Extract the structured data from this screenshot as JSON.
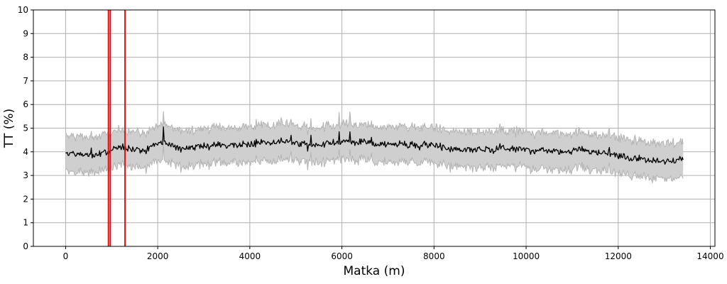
{
  "chart_data": {
    "type": "line",
    "title": "",
    "xlabel": "Matka (m)",
    "ylabel": "TT (%)",
    "xlim": [
      -700,
      14100
    ],
    "ylim": [
      0,
      10
    ],
    "xticks": [
      0,
      2000,
      4000,
      6000,
      8000,
      10000,
      12000,
      14000
    ],
    "yticks": [
      0,
      1,
      2,
      3,
      4,
      5,
      6,
      7,
      8,
      9,
      10
    ],
    "grid": true,
    "legend": "none",
    "colors": {
      "line": "#000000",
      "band": "#cfcfcf",
      "band_edge": "#b4b4b4",
      "markers": "#e01010",
      "grid": "#b0b0b0"
    },
    "x_range": [
      0,
      13420
    ],
    "series": [
      {
        "x": [
          0,
          250,
          500,
          750,
          1000,
          1250,
          1500,
          1750,
          2000,
          2250,
          2500,
          2750,
          3000,
          3250,
          3500,
          3750,
          4000,
          4250,
          4500,
          4750,
          5000,
          5250,
          5500,
          5750,
          6000,
          6250,
          6500,
          6750,
          7000,
          7250,
          7500,
          7750,
          8000,
          8250,
          8500,
          8750,
          9000,
          9250,
          9500,
          9750,
          10000,
          10250,
          10500,
          10750,
          11000,
          11250,
          11500,
          11750,
          12000,
          12250,
          12500,
          12750,
          13000,
          13250,
          13420
        ],
        "y": [
          3.95,
          3.9,
          3.85,
          3.9,
          4.05,
          4.25,
          4.1,
          4.05,
          4.4,
          4.3,
          4.15,
          4.2,
          4.25,
          4.3,
          4.25,
          4.3,
          4.3,
          4.4,
          4.35,
          4.45,
          4.35,
          4.3,
          4.3,
          4.35,
          4.45,
          4.4,
          4.4,
          4.3,
          4.3,
          4.35,
          4.3,
          4.3,
          4.3,
          4.15,
          4.1,
          4.05,
          4.1,
          4.05,
          4.15,
          4.1,
          4.1,
          4.05,
          4.05,
          4.0,
          4.05,
          4.1,
          3.95,
          3.95,
          3.85,
          3.75,
          3.7,
          3.6,
          3.6,
          3.65,
          3.7
        ],
        "band_halfwidth": 0.75
      }
    ],
    "vertical_markers": [
      930,
      970,
      1290
    ]
  }
}
